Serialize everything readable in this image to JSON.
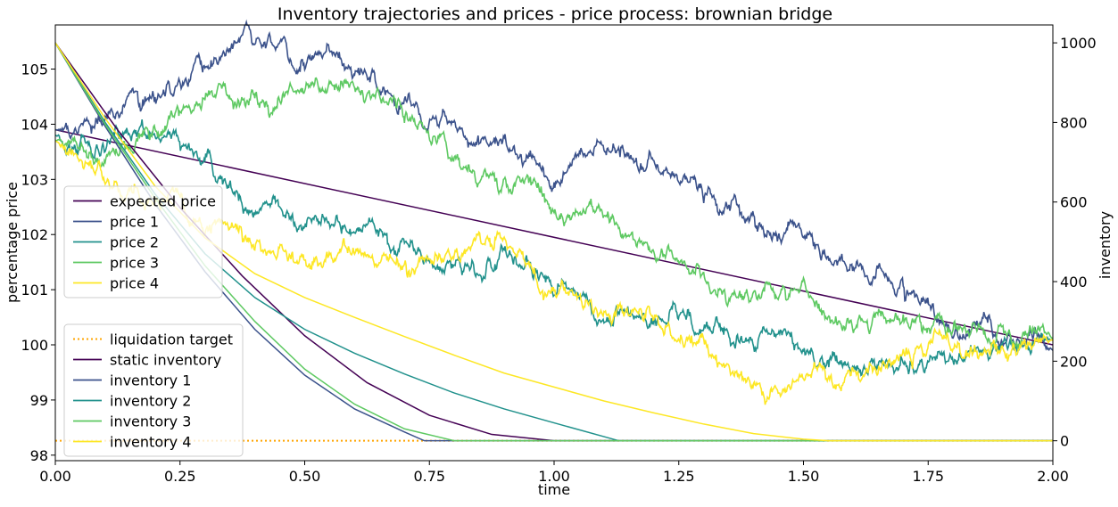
{
  "chart_data": {
    "type": "line",
    "title": "Inventory trajectories and prices - price process: brownian bridge",
    "xlabel": "time",
    "ylabel_left": "percentage price",
    "ylabel_right": "inventory",
    "xlim": [
      0,
      2
    ],
    "ylim_left": [
      97.9,
      105.8
    ],
    "ylim_right": [
      -50,
      1045
    ],
    "x_ticks": [
      "0.00",
      "0.25",
      "0.50",
      "0.75",
      "1.00",
      "1.25",
      "1.50",
      "1.75",
      "2.00"
    ],
    "x_tick_values": [
      0,
      0.25,
      0.5,
      0.75,
      1.0,
      1.25,
      1.5,
      1.75,
      2.0
    ],
    "y_ticks_left": [
      "98",
      "99",
      "100",
      "101",
      "102",
      "103",
      "104",
      "105"
    ],
    "y_tick_values_left": [
      98,
      99,
      100,
      101,
      102,
      103,
      104,
      105
    ],
    "y_ticks_right": [
      "0",
      "200",
      "400",
      "600",
      "800",
      "1000"
    ],
    "y_tick_values_right": [
      0,
      200,
      400,
      600,
      800,
      1000
    ],
    "grid": false,
    "price_legend_position": "center-left",
    "inventory_legend_position": "lower-left",
    "price_series": [
      {
        "name": "expected price",
        "color": "#440154",
        "noisy": false,
        "x": [
          0,
          2
        ],
        "y": [
          103.9,
          100.0
        ]
      },
      {
        "name": "price 1",
        "color": "#3b528b",
        "noisy": true,
        "x": [
          0,
          0.1,
          0.2,
          0.3,
          0.38,
          0.45,
          0.5,
          0.6,
          0.7,
          0.8,
          0.9,
          1.0,
          1.05,
          1.1,
          1.2,
          1.3,
          1.4,
          1.5,
          1.6,
          1.7,
          1.8,
          1.9,
          2.0
        ],
        "y": [
          103.9,
          103.9,
          104.5,
          105.0,
          105.8,
          105.4,
          105.2,
          104.9,
          104.5,
          104.2,
          103.6,
          103.0,
          103.5,
          103.4,
          103.2,
          102.8,
          102.2,
          102.0,
          101.5,
          101.0,
          100.4,
          100.2,
          99.9
        ]
      },
      {
        "name": "price 2",
        "color": "#21918c",
        "noisy": true,
        "x": [
          0,
          0.1,
          0.2,
          0.3,
          0.4,
          0.5,
          0.6,
          0.7,
          0.8,
          0.9,
          1.0,
          1.1,
          1.2,
          1.3,
          1.4,
          1.5,
          1.6,
          1.7,
          1.8,
          1.9,
          2.0
        ],
        "y": [
          103.8,
          103.7,
          103.8,
          103.3,
          102.6,
          102.3,
          102.1,
          101.8,
          101.5,
          101.4,
          101.0,
          100.6,
          100.5,
          100.2,
          100.2,
          99.9,
          99.6,
          99.8,
          99.9,
          100.0,
          100.1
        ]
      },
      {
        "name": "price 3",
        "color": "#5ec962",
        "noisy": true,
        "x": [
          0,
          0.1,
          0.2,
          0.3,
          0.4,
          0.5,
          0.55,
          0.6,
          0.7,
          0.8,
          0.9,
          1.0,
          1.1,
          1.2,
          1.3,
          1.4,
          1.5,
          1.6,
          1.7,
          1.8,
          1.9,
          2.0
        ],
        "y": [
          103.7,
          103.6,
          103.9,
          104.6,
          104.6,
          104.8,
          104.8,
          104.5,
          104.2,
          103.5,
          102.9,
          102.5,
          102.3,
          101.8,
          101.2,
          101.0,
          100.8,
          100.6,
          100.4,
          100.3,
          100.2,
          100.1
        ]
      },
      {
        "name": "price 4",
        "color": "#fde725",
        "noisy": true,
        "x": [
          0,
          0.05,
          0.1,
          0.2,
          0.3,
          0.4,
          0.5,
          0.6,
          0.7,
          0.8,
          0.9,
          1.0,
          1.1,
          1.2,
          1.3,
          1.4,
          1.45,
          1.5,
          1.6,
          1.7,
          1.8,
          1.9,
          2.0
        ],
        "y": [
          103.7,
          103.3,
          102.9,
          102.8,
          102.3,
          101.7,
          101.5,
          101.5,
          101.5,
          101.6,
          101.8,
          101.2,
          100.7,
          100.4,
          100.0,
          99.4,
          99.0,
          99.6,
          99.5,
          99.7,
          100.1,
          100.0,
          100.1
        ]
      }
    ],
    "inventory_series": [
      {
        "name": "liquidation target",
        "color": "#ffa500",
        "dashed": true,
        "x": [
          0,
          2
        ],
        "y": [
          0,
          0
        ]
      },
      {
        "name": "static inventory",
        "color": "#440154",
        "dashed": false,
        "x": [
          0,
          0.125,
          0.25,
          0.375,
          0.5,
          0.625,
          0.75,
          0.875,
          1.0,
          2.0
        ],
        "y": [
          1000,
          781,
          586,
          414,
          264,
          146,
          64,
          16,
          0,
          0
        ]
      },
      {
        "name": "inventory 1",
        "color": "#3b528b",
        "dashed": false,
        "x": [
          0,
          0.1,
          0.2,
          0.3,
          0.4,
          0.5,
          0.6,
          0.7,
          0.74,
          2.0
        ],
        "y": [
          1000,
          790,
          595,
          425,
          280,
          165,
          80,
          22,
          0,
          0
        ]
      },
      {
        "name": "inventory 2",
        "color": "#21918c",
        "dashed": false,
        "x": [
          0,
          0.1,
          0.2,
          0.3,
          0.4,
          0.5,
          0.6,
          0.7,
          0.8,
          0.9,
          1.0,
          1.13,
          2.0
        ],
        "y": [
          1000,
          800,
          620,
          470,
          360,
          280,
          220,
          168,
          120,
          80,
          45,
          0,
          0
        ]
      },
      {
        "name": "inventory 3",
        "color": "#5ec962",
        "dashed": false,
        "x": [
          0,
          0.1,
          0.2,
          0.3,
          0.4,
          0.5,
          0.6,
          0.7,
          0.8,
          2.0
        ],
        "y": [
          1000,
          795,
          610,
          440,
          300,
          180,
          92,
          30,
          0,
          0
        ]
      },
      {
        "name": "inventory 4",
        "color": "#fde725",
        "dashed": false,
        "x": [
          0,
          0.1,
          0.2,
          0.3,
          0.4,
          0.5,
          0.6,
          0.7,
          0.8,
          0.9,
          1.0,
          1.1,
          1.2,
          1.3,
          1.4,
          1.5,
          1.55,
          2.0
        ],
        "y": [
          1000,
          810,
          640,
          510,
          420,
          360,
          310,
          262,
          215,
          170,
          135,
          100,
          70,
          42,
          18,
          4,
          0,
          0
        ]
      }
    ]
  }
}
